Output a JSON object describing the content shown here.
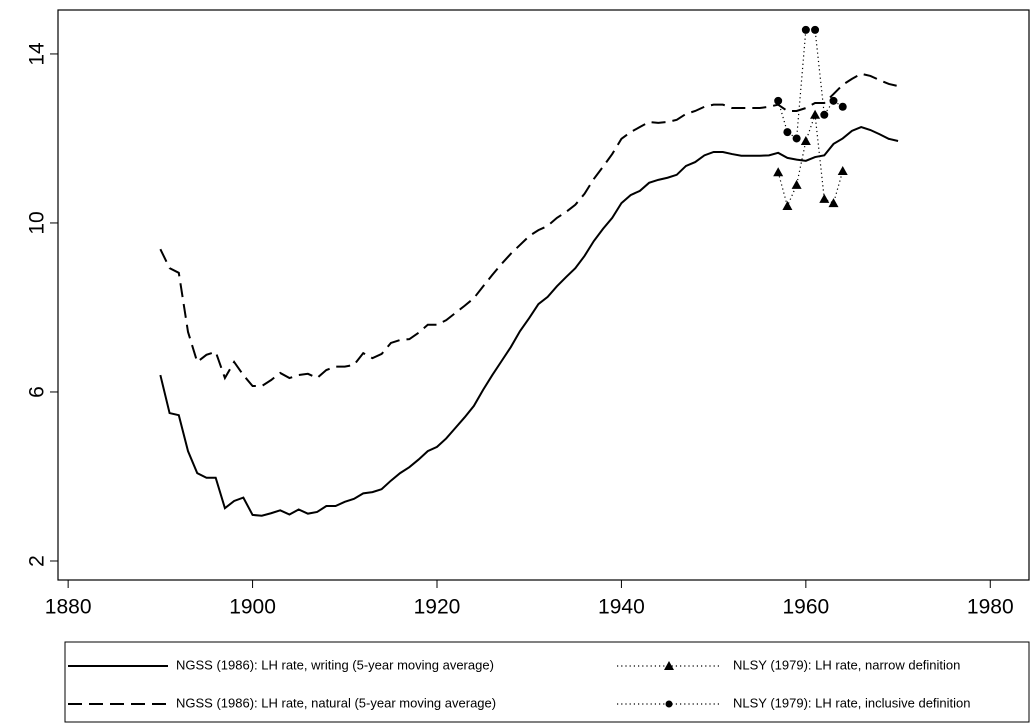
{
  "chart_data": {
    "type": "line",
    "xlim": [
      1878.9,
      1984.2
    ],
    "xticks": [
      1880,
      1900,
      1920,
      1940,
      1960,
      1980
    ],
    "ylim": [
      1.55,
      15.04
    ],
    "yticks": [
      2,
      6,
      10,
      14
    ],
    "series": [
      {
        "name": "NGSS (1986): LH rate, writing (5-year moving average)",
        "color": "#000000",
        "style": "solid",
        "marker": "none",
        "x": [
          1890,
          1891,
          1892,
          1893,
          1894,
          1895,
          1896,
          1897,
          1898,
          1899,
          1900,
          1901,
          1902,
          1903,
          1904,
          1905,
          1906,
          1907,
          1908,
          1909,
          1910,
          1911,
          1912,
          1913,
          1914,
          1915,
          1916,
          1917,
          1918,
          1919,
          1920,
          1921,
          1922,
          1923,
          1924,
          1925,
          1926,
          1927,
          1928,
          1929,
          1930,
          1931,
          1932,
          1933,
          1934,
          1935,
          1936,
          1937,
          1938,
          1939,
          1940,
          1941,
          1942,
          1943,
          1944,
          1945,
          1946,
          1947,
          1948,
          1949,
          1950,
          1951,
          1952,
          1953,
          1954,
          1955,
          1956,
          1957,
          1958,
          1959,
          1960,
          1961,
          1962,
          1963,
          1964,
          1965,
          1966,
          1967,
          1968,
          1969,
          1970
        ],
        "values": [
          6.4,
          5.5,
          5.45,
          4.6,
          4.08,
          3.97,
          3.97,
          3.25,
          3.42,
          3.5,
          3.09,
          3.07,
          3.13,
          3.2,
          3.1,
          3.22,
          3.12,
          3.16,
          3.3,
          3.3,
          3.4,
          3.47,
          3.6,
          3.63,
          3.7,
          3.9,
          4.08,
          4.22,
          4.4,
          4.6,
          4.7,
          4.9,
          5.15,
          5.4,
          5.67,
          6.05,
          6.4,
          6.73,
          7.06,
          7.44,
          7.75,
          8.08,
          8.25,
          8.5,
          8.72,
          8.93,
          9.22,
          9.57,
          9.86,
          10.12,
          10.47,
          10.66,
          10.76,
          10.95,
          11.02,
          11.07,
          11.14,
          11.35,
          11.44,
          11.6,
          11.68,
          11.68,
          11.63,
          11.59,
          11.59,
          11.59,
          11.6,
          11.66,
          11.54,
          11.5,
          11.47,
          11.56,
          11.6,
          11.87,
          12.0,
          12.18,
          12.27,
          12.2,
          12.1,
          11.99,
          11.94
        ]
      },
      {
        "name": "NGSS (1986): LH rate, natural (5-year moving average)",
        "color": "#000000",
        "style": "dashed",
        "marker": "none",
        "x": [
          1890,
          1891,
          1892,
          1893,
          1894,
          1895,
          1896,
          1897,
          1898,
          1899,
          1900,
          1901,
          1902,
          1903,
          1904,
          1905,
          1906,
          1907,
          1908,
          1909,
          1910,
          1911,
          1912,
          1913,
          1914,
          1915,
          1916,
          1917,
          1918,
          1919,
          1920,
          1921,
          1922,
          1923,
          1924,
          1925,
          1926,
          1927,
          1928,
          1929,
          1930,
          1931,
          1932,
          1933,
          1934,
          1935,
          1936,
          1937,
          1938,
          1939,
          1940,
          1941,
          1942,
          1943,
          1944,
          1945,
          1946,
          1947,
          1948,
          1949,
          1950,
          1951,
          1952,
          1953,
          1954,
          1955,
          1956,
          1957,
          1958,
          1959,
          1960,
          1961,
          1962,
          1963,
          1964,
          1965,
          1966,
          1967,
          1968,
          1969,
          1970
        ],
        "values": [
          9.38,
          8.93,
          8.82,
          7.42,
          6.71,
          6.88,
          6.95,
          6.33,
          6.71,
          6.4,
          6.14,
          6.14,
          6.28,
          6.45,
          6.33,
          6.4,
          6.43,
          6.33,
          6.52,
          6.6,
          6.6,
          6.64,
          6.92,
          6.8,
          6.9,
          7.16,
          7.23,
          7.25,
          7.4,
          7.59,
          7.59,
          7.7,
          7.87,
          8.04,
          8.22,
          8.5,
          8.77,
          9.03,
          9.27,
          9.48,
          9.69,
          9.83,
          9.93,
          10.12,
          10.26,
          10.43,
          10.69,
          11.04,
          11.33,
          11.63,
          11.99,
          12.15,
          12.27,
          12.39,
          12.37,
          12.39,
          12.44,
          12.58,
          12.65,
          12.75,
          12.8,
          12.8,
          12.72,
          12.72,
          12.72,
          12.72,
          12.75,
          12.8,
          12.65,
          12.65,
          12.72,
          12.84,
          12.84,
          13.05,
          13.27,
          13.41,
          13.53,
          13.48,
          13.38,
          13.29,
          13.24
        ]
      },
      {
        "name": "NLSY (1979): LH rate, narrow definition",
        "color": "#000000",
        "style": "dotted",
        "marker": "triangle",
        "x": [
          1957,
          1958,
          1959,
          1960,
          1961,
          1962,
          1963,
          1964
        ],
        "values": [
          11.2,
          10.4,
          10.9,
          11.94,
          12.56,
          10.57,
          10.47,
          11.23
        ]
      },
      {
        "name": "NLSY (1979): LH rate, inclusive definition",
        "color": "#000000",
        "style": "dotted",
        "marker": "circle",
        "x": [
          1957,
          1958,
          1959,
          1960,
          1961,
          1962,
          1963,
          1964
        ],
        "values": [
          12.89,
          12.15,
          12.0,
          14.57,
          14.57,
          12.56,
          12.89,
          12.75
        ]
      }
    ]
  }
}
